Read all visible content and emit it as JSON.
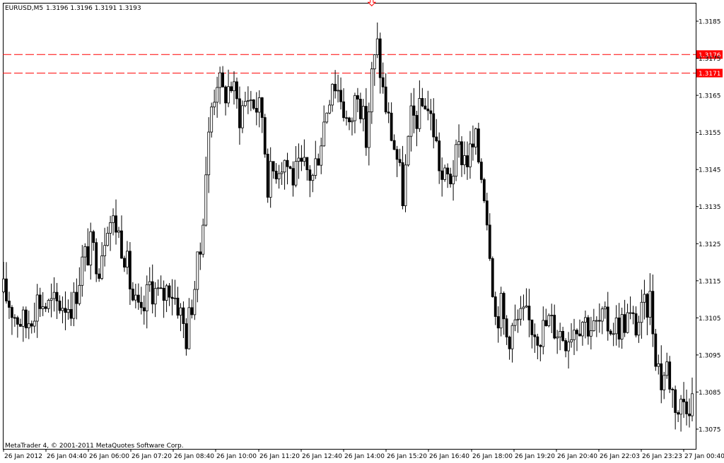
{
  "header": {
    "symbol_timeframe": "EURUSD,M5",
    "ohlc": "1.3196 1.3196 1.3191 1.3193"
  },
  "footer": {
    "copyright": "MetaTrader 4, © 2001-2011 MetaQuotes Software Corp."
  },
  "chart_data": {
    "type": "candlestick",
    "symbol": "EURUSD",
    "timeframe": "M5",
    "ylim": [
      1.3071,
      1.3191
    ],
    "y_ticks": [
      "1.3185",
      "1.3175",
      "1.3165",
      "1.3155",
      "1.3145",
      "1.3135",
      "1.3125",
      "1.3115",
      "1.3105",
      "1.3095",
      "1.3085",
      "1.3075"
    ],
    "x_ticks": [
      "26 Jan 2012",
      "26 Jan 04:40",
      "26 Jan 06:00",
      "26 Jan 07:20",
      "26 Jan 08:40",
      "26 Jan 10:00",
      "26 Jan 11:20",
      "26 Jan 12:40",
      "26 Jan 14:00",
      "26 Jan 15:20",
      "26 Jan 16:40",
      "26 Jan 18:00",
      "26 Jan 19:20",
      "26 Jan 20:40",
      "26 Jan 22:03",
      "26 Jan 23:23",
      "27 Jan 00:40"
    ],
    "horizontal_levels": [
      {
        "value": 1.3176,
        "label": "1.3176",
        "color": "#ff0000",
        "style": "dashed"
      },
      {
        "value": 1.3171,
        "label": "1.3171",
        "color": "#ff0000",
        "style": "dashed"
      }
    ],
    "arrow_marker": {
      "x_index": 131,
      "price": 1.3188,
      "color": "#ff0000",
      "direction": "down"
    },
    "close_path": [
      [
        0,
        1.3112
      ],
      [
        4,
        1.3106
      ],
      [
        8,
        1.3103
      ],
      [
        12,
        1.311
      ],
      [
        16,
        1.3108
      ],
      [
        20,
        1.3109
      ],
      [
        25,
        1.3109
      ],
      [
        28,
        1.312
      ],
      [
        31,
        1.3124
      ],
      [
        34,
        1.312
      ],
      [
        37,
        1.3132
      ],
      [
        40,
        1.313
      ],
      [
        43,
        1.3123
      ],
      [
        46,
        1.311
      ],
      [
        49,
        1.3104
      ],
      [
        52,
        1.3114
      ],
      [
        56,
        1.311
      ],
      [
        59,
        1.3114
      ],
      [
        62,
        1.3109
      ],
      [
        65,
        1.31
      ],
      [
        68,
        1.3114
      ],
      [
        70,
        1.3123
      ],
      [
        72,
        1.3145
      ],
      [
        74,
        1.3162
      ],
      [
        76,
        1.317
      ],
      [
        78,
        1.3165
      ],
      [
        81,
        1.3168
      ],
      [
        84,
        1.316
      ],
      [
        87,
        1.3165
      ],
      [
        90,
        1.3162
      ],
      [
        92,
        1.316
      ],
      [
        94,
        1.3142
      ],
      [
        97,
        1.3146
      ],
      [
        100,
        1.3148
      ],
      [
        103,
        1.3143
      ],
      [
        107,
        1.3145
      ],
      [
        110,
        1.3143
      ],
      [
        112,
        1.315
      ],
      [
        114,
        1.3158
      ],
      [
        117,
        1.317
      ],
      [
        120,
        1.3165
      ],
      [
        123,
        1.3155
      ],
      [
        126,
        1.3168
      ],
      [
        129,
        1.3153
      ],
      [
        131,
        1.317
      ],
      [
        133,
        1.3178
      ],
      [
        135,
        1.3166
      ],
      [
        137,
        1.3158
      ],
      [
        140,
        1.3148
      ],
      [
        142,
        1.3138
      ],
      [
        145,
        1.3158
      ],
      [
        148,
        1.316
      ],
      [
        150,
        1.3164
      ],
      [
        153,
        1.3156
      ],
      [
        156,
        1.3142
      ],
      [
        159,
        1.3143
      ],
      [
        162,
        1.315
      ],
      [
        165,
        1.3148
      ],
      [
        168,
        1.3152
      ],
      [
        171,
        1.314
      ],
      [
        173,
        1.3125
      ],
      [
        175,
        1.3105
      ],
      [
        177,
        1.3108
      ],
      [
        179,
        1.31
      ],
      [
        182,
        1.3103
      ],
      [
        185,
        1.3105
      ],
      [
        188,
        1.3103
      ],
      [
        191,
        1.3101
      ],
      [
        194,
        1.3104
      ],
      [
        197,
        1.3102
      ],
      [
        200,
        1.31
      ],
      [
        203,
        1.3103
      ],
      [
        206,
        1.3105
      ],
      [
        210,
        1.3102
      ],
      [
        213,
        1.3104
      ],
      [
        216,
        1.3103
      ],
      [
        219,
        1.3103
      ],
      [
        222,
        1.3105
      ],
      [
        225,
        1.3103
      ],
      [
        228,
        1.3107
      ],
      [
        230,
        1.311
      ],
      [
        232,
        1.3096
      ],
      [
        234,
        1.3088
      ],
      [
        236,
        1.3092
      ],
      [
        238,
        1.3085
      ],
      [
        240,
        1.308
      ],
      [
        242,
        1.3083
      ],
      [
        244,
        1.3083
      ]
    ]
  }
}
